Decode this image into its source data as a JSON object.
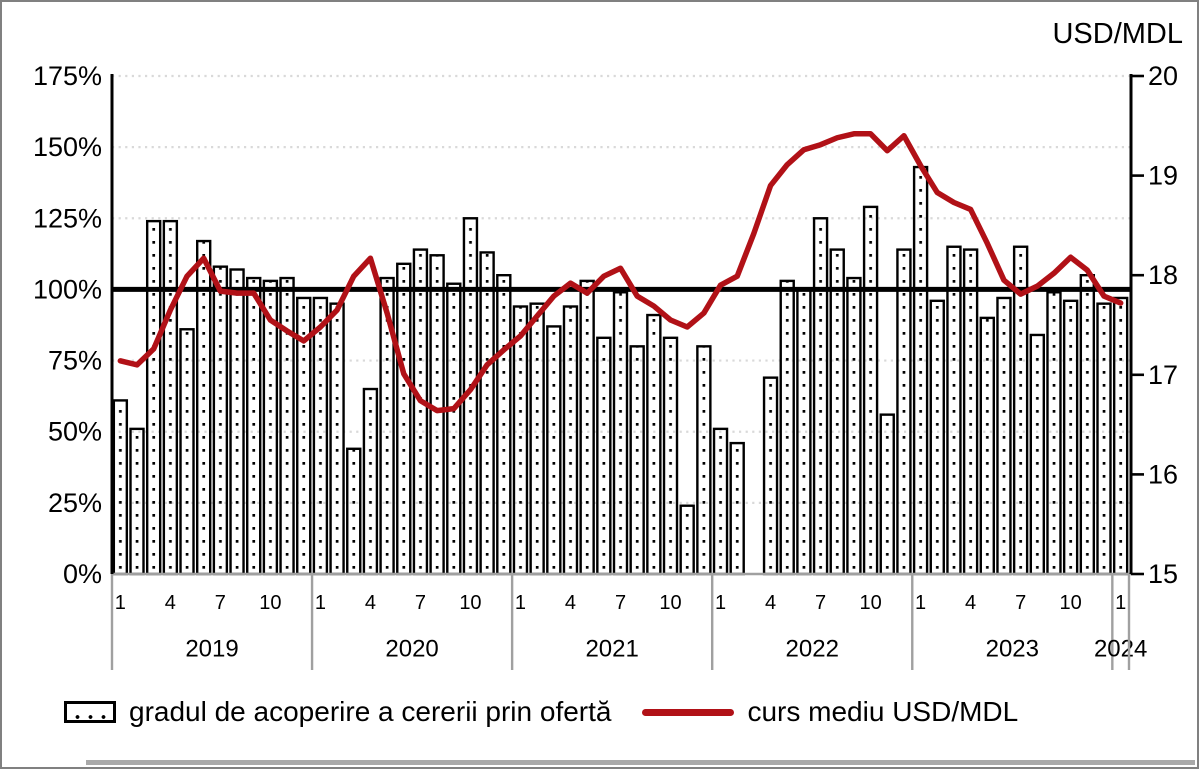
{
  "legend": {
    "bars_label": "gradul de acoperire a cererii prin ofertă",
    "line_label": "curs mediu USD/MDL"
  },
  "colors": {
    "line": "#b11117",
    "bar_fill": "#ffffff",
    "bar_border": "#000000",
    "gridline": "#d9d9d9",
    "axis_gray": "#a0a0a0",
    "reference_line": "#000000",
    "text": "#000000"
  },
  "chart_data": {
    "type": "combo",
    "categories": [
      "2019-1",
      "2019-2",
      "2019-3",
      "2019-4",
      "2019-5",
      "2019-6",
      "2019-7",
      "2019-8",
      "2019-9",
      "2019-10",
      "2019-11",
      "2019-12",
      "2020-1",
      "2020-2",
      "2020-3",
      "2020-4",
      "2020-5",
      "2020-6",
      "2020-7",
      "2020-8",
      "2020-9",
      "2020-10",
      "2020-11",
      "2020-12",
      "2021-1",
      "2021-2",
      "2021-3",
      "2021-4",
      "2021-5",
      "2021-6",
      "2021-7",
      "2021-8",
      "2021-9",
      "2021-10",
      "2021-11",
      "2021-12",
      "2022-1",
      "2022-2",
      "2022-3",
      "2022-4",
      "2022-5",
      "2022-6",
      "2022-7",
      "2022-8",
      "2022-9",
      "2022-10",
      "2022-11",
      "2022-12",
      "2023-1",
      "2023-2",
      "2023-3",
      "2023-4",
      "2023-5",
      "2023-6",
      "2023-7",
      "2023-8",
      "2023-9",
      "2023-10",
      "2023-11",
      "2023-12",
      "2024-1"
    ],
    "series": [
      {
        "name": "gradul de acoperire a cererii prin ofertă",
        "type": "bar",
        "axis": "left",
        "unit": "%",
        "values": [
          61,
          51,
          124,
          124,
          86,
          117,
          108,
          107,
          104,
          103,
          104,
          97,
          97,
          95,
          44,
          65,
          104,
          109,
          114,
          112,
          102,
          125,
          113,
          105,
          94,
          95,
          87,
          94,
          103,
          83,
          99,
          80,
          91,
          83,
          24,
          80,
          51,
          46,
          null,
          69,
          103,
          100,
          125,
          114,
          104,
          129,
          56,
          114,
          143,
          96,
          115,
          114,
          90,
          97,
          115,
          84,
          99,
          96,
          105,
          95,
          97
        ]
      },
      {
        "name": "curs mediu USD/MDL",
        "type": "line",
        "axis": "right",
        "unit": "MDL",
        "values": [
          17.14,
          17.1,
          17.26,
          17.65,
          17.99,
          18.17,
          17.84,
          17.82,
          17.82,
          17.55,
          17.44,
          17.34,
          17.48,
          17.65,
          17.99,
          18.17,
          17.62,
          17.01,
          16.74,
          16.64,
          16.66,
          16.85,
          17.1,
          17.25,
          17.39,
          17.59,
          17.79,
          17.92,
          17.82,
          17.99,
          18.07,
          17.79,
          17.69,
          17.55,
          17.48,
          17.62,
          17.9,
          17.99,
          18.42,
          18.9,
          19.11,
          19.26,
          19.31,
          19.38,
          19.42,
          19.42,
          19.25,
          19.4,
          19.1,
          18.83,
          18.73,
          18.66,
          18.32,
          17.95,
          17.81,
          17.89,
          18.02,
          18.18,
          18.05,
          17.79,
          17.72
        ]
      }
    ],
    "left_axis": {
      "min": 0,
      "max": 175,
      "step": 25,
      "tick_labels": [
        "0%",
        "25%",
        "50%",
        "75%",
        "100%",
        "125%",
        "150%",
        "175%"
      ]
    },
    "right_axis": {
      "min": 15,
      "max": 20,
      "step": 1,
      "tick_labels": [
        "15",
        "16",
        "17",
        "18",
        "19",
        "20"
      ],
      "title": "USD/MDL"
    },
    "x_axis": {
      "month_tick_labels": [
        "1",
        "4",
        "7",
        "10"
      ],
      "years": [
        {
          "label": "2019",
          "months": 12
        },
        {
          "label": "2020",
          "months": 12
        },
        {
          "label": "2021",
          "months": 12
        },
        {
          "label": "2022",
          "months": 12
        },
        {
          "label": "2023",
          "months": 12
        },
        {
          "label": "2024",
          "months": 1
        }
      ]
    },
    "reference_line": {
      "axis": "left",
      "value": 100
    },
    "grid": true,
    "legend_position": "bottom"
  }
}
